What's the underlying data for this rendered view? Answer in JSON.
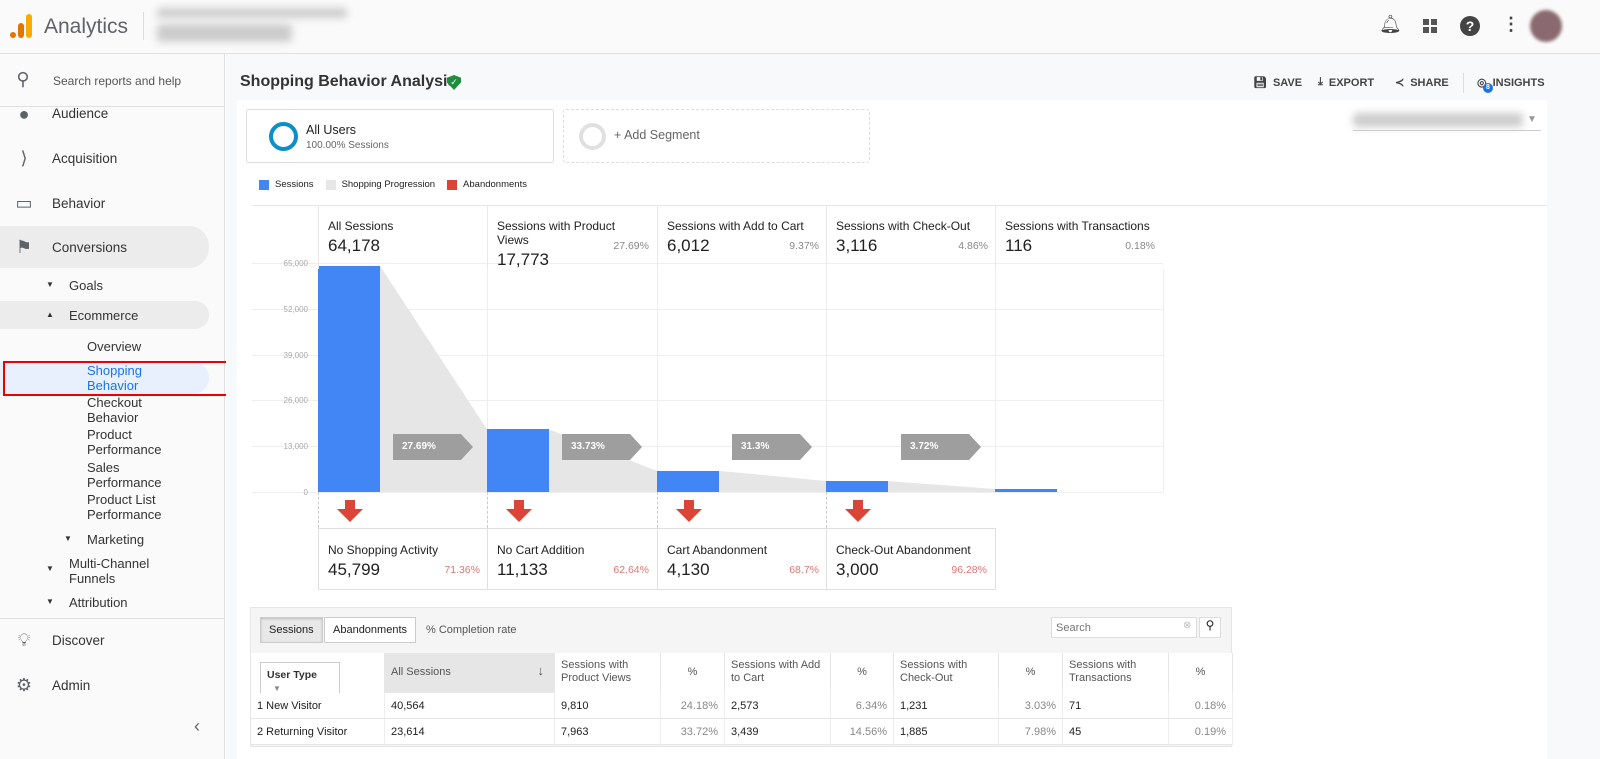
{
  "app": {
    "title": "Analytics"
  },
  "topbar": {
    "icons": [
      "bell-icon",
      "apps-grid-icon",
      "help-icon",
      "more-vert-icon",
      "avatar"
    ]
  },
  "sidebar": {
    "search_placeholder": "Search reports and help",
    "items": [
      {
        "label": "Audience",
        "icon": "person-icon"
      },
      {
        "label": "Acquisition",
        "icon": "acquisition-icon"
      },
      {
        "label": "Behavior",
        "icon": "behavior-icon"
      },
      {
        "label": "Conversions",
        "icon": "flag-icon"
      }
    ],
    "goals": "Goals",
    "ecommerce": "Ecommerce",
    "ecom_items": [
      "Overview",
      "Shopping Behavior",
      "Checkout Behavior",
      "Product Performance",
      "Sales Performance",
      "Product List Performance"
    ],
    "marketing": "Marketing",
    "mcf": "Multi-Channel Funnels",
    "attribution": "Attribution",
    "discover": "Discover",
    "admin": "Admin"
  },
  "page": {
    "title": "Shopping Behavior Analysis",
    "save": "SAVE",
    "export": "EXPORT",
    "share": "SHARE",
    "insights": "INSIGHTS",
    "insights_badge": "8"
  },
  "segments": {
    "all_users": "All Users",
    "all_users_sub": "100.00% Sessions",
    "add": "+ Add Segment"
  },
  "legend": {
    "sessions": "Sessions",
    "progression": "Shopping Progression",
    "abandonments": "Abandonments",
    "colors": {
      "sessions": "#4285f4",
      "progression": "#e6e6e6",
      "abandonments": "#db4437"
    }
  },
  "chart_data": {
    "type": "bar",
    "yticks": [
      "65,000",
      "52,000",
      "39,000",
      "26,000",
      "13,000",
      "0"
    ],
    "ylim": [
      0,
      65000
    ],
    "stages": [
      {
        "label": "All Sessions",
        "value": "64,178",
        "v": 64178,
        "pct": ""
      },
      {
        "label": "Sessions with Product Views",
        "value": "17,773",
        "v": 17773,
        "pct": "27.69%"
      },
      {
        "label": "Sessions with Add to Cart",
        "value": "6,012",
        "v": 6012,
        "pct": "9.37%"
      },
      {
        "label": "Sessions with Check-Out",
        "value": "3,116",
        "v": 3116,
        "pct": "4.86%"
      },
      {
        "label": "Sessions with Transactions",
        "value": "116",
        "v": 116,
        "pct": "0.18%"
      }
    ],
    "progression": [
      "27.69%",
      "33.73%",
      "31.3%",
      "3.72%"
    ],
    "abandonments": [
      {
        "label": "No Shopping Activity",
        "value": "45,799",
        "pct": "71.36%"
      },
      {
        "label": "No Cart Addition",
        "value": "11,133",
        "pct": "62.64%"
      },
      {
        "label": "Cart Abandonment",
        "value": "4,130",
        "pct": "68.7%"
      },
      {
        "label": "Check-Out Abandonment",
        "value": "3,000",
        "pct": "96.28%"
      }
    ]
  },
  "table": {
    "tab_sessions": "Sessions",
    "tab_abandonments": "Abandonments",
    "completion": "% Completion rate",
    "search_placeholder": "Search",
    "dimension": "User Type",
    "headers": [
      "All Sessions",
      "Sessions with Product Views",
      "%",
      "Sessions with Add to Cart",
      "%",
      "Sessions with Check-Out",
      "%",
      "Sessions with Transactions",
      "%"
    ],
    "rows": [
      [
        "1  New Visitor",
        "40,564",
        "9,810",
        "24.18%",
        "2,573",
        "6.34%",
        "1,231",
        "3.03%",
        "71",
        "0.18%"
      ],
      [
        "2  Returning Visitor",
        "23,614",
        "7,963",
        "33.72%",
        "3,439",
        "14.56%",
        "1,885",
        "7.98%",
        "45",
        "0.19%"
      ]
    ]
  }
}
